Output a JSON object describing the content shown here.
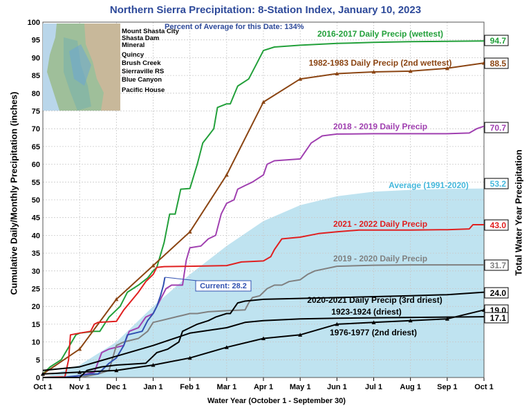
{
  "title": "Northern Sierra Precipitation: 8-Station Index, January 10, 2023",
  "percent_of_average": "Percent of Average for this Date: 134%",
  "inset_map": {
    "stations": [
      "Mount Shasta City",
      "Shasta Dam",
      "Mineral",
      "Quincy",
      "Brush Creek",
      "Sierraville RS",
      "Blue Canyon",
      "Pacific House"
    ]
  },
  "colors": {
    "y2016_2017": "#22a03a",
    "y1982_1983": "#8b4513",
    "y2018_2019": "#a040b0",
    "average": "#bfe3f0",
    "average_text": "#45b8dc",
    "y2021_2022": "#e02020",
    "y2019_2020": "#808080",
    "current": "#3050b0",
    "black": "#000000"
  },
  "chart_data": {
    "type": "line",
    "title": "Northern Sierra Precipitation: 8-Station Index, January 10, 2023",
    "xlabel": "Water Year (October 1 - September 30)",
    "ylabel": "Cumulative Daily/Monthly Precipitation (inches)",
    "ylabel_right": "Total Water Year Precipitation",
    "x_ticks": [
      "Oct 1",
      "Nov 1",
      "Dec 1",
      "Jan 1",
      "Feb 1",
      "Mar 1",
      "Apr 1",
      "May 1",
      "Jun 1",
      "Jul 1",
      "Aug 1",
      "Sep 1",
      "Oct 1"
    ],
    "y_ticks": [
      "0",
      "5",
      "10",
      "15",
      "20",
      "25",
      "30",
      "35",
      "40",
      "45",
      "50",
      "55",
      "60",
      "65",
      "70",
      "75",
      "80",
      "85",
      "90",
      "95",
      "100"
    ],
    "xlim_months": [
      0,
      12
    ],
    "ylim": [
      0,
      100
    ],
    "grid": true,
    "series": [
      {
        "name": "2016-2017 Daily Precip (wettest)",
        "color_key": "y2016_2017",
        "total": "94.7",
        "points": [
          [
            0,
            1
          ],
          [
            0.2,
            3
          ],
          [
            0.5,
            5
          ],
          [
            0.9,
            12
          ],
          [
            1.0,
            12.5
          ],
          [
            1.4,
            13
          ],
          [
            1.55,
            13
          ],
          [
            1.8,
            17
          ],
          [
            2.1,
            20
          ],
          [
            2.3,
            24
          ],
          [
            2.6,
            26
          ],
          [
            2.85,
            28
          ],
          [
            3.0,
            30
          ],
          [
            3.1,
            31
          ],
          [
            3.3,
            38
          ],
          [
            3.45,
            46
          ],
          [
            3.6,
            46
          ],
          [
            3.75,
            53
          ],
          [
            4.0,
            53.2
          ],
          [
            4.2,
            60
          ],
          [
            4.35,
            66
          ],
          [
            4.5,
            68
          ],
          [
            4.65,
            70
          ],
          [
            4.75,
            76
          ],
          [
            5.0,
            77
          ],
          [
            5.1,
            77
          ],
          [
            5.3,
            82
          ],
          [
            5.6,
            84
          ],
          [
            5.8,
            88
          ],
          [
            6.0,
            92
          ],
          [
            6.3,
            93
          ],
          [
            7.0,
            93.5
          ],
          [
            8.0,
            94
          ],
          [
            9.0,
            94.3
          ],
          [
            10.0,
            94.5
          ],
          [
            11.0,
            94.6
          ],
          [
            12.0,
            94.7
          ]
        ]
      },
      {
        "name": "1982-1983 Daily Precip (2nd wettest)",
        "color_key": "y1982_1983",
        "total": "88.5",
        "points": [
          [
            0,
            1
          ],
          [
            1,
            8
          ],
          [
            2,
            22
          ],
          [
            3,
            31.5
          ],
          [
            4,
            41
          ],
          [
            5,
            57
          ],
          [
            6,
            77.5
          ],
          [
            7,
            84
          ],
          [
            8,
            85.5
          ],
          [
            9,
            86
          ],
          [
            10,
            86.2
          ],
          [
            11,
            87
          ],
          [
            12,
            88.5
          ]
        ]
      },
      {
        "name": "2018 - 2019 Daily Precip",
        "color_key": "y2018_2019",
        "total": "70.7",
        "points": [
          [
            0,
            0
          ],
          [
            0.6,
            0
          ],
          [
            1.0,
            0.5
          ],
          [
            1.4,
            1.5
          ],
          [
            1.6,
            7
          ],
          [
            1.8,
            8
          ],
          [
            2.2,
            9
          ],
          [
            2.35,
            13
          ],
          [
            2.6,
            14
          ],
          [
            2.8,
            17
          ],
          [
            3.0,
            18
          ],
          [
            3.2,
            22
          ],
          [
            3.35,
            25
          ],
          [
            3.5,
            26
          ],
          [
            3.8,
            26
          ],
          [
            3.9,
            33
          ],
          [
            4.0,
            36.5
          ],
          [
            4.3,
            37
          ],
          [
            4.5,
            39
          ],
          [
            4.7,
            40
          ],
          [
            4.85,
            46
          ],
          [
            5.0,
            49
          ],
          [
            5.2,
            50
          ],
          [
            5.3,
            53
          ],
          [
            5.5,
            54
          ],
          [
            5.7,
            55
          ],
          [
            6.0,
            57
          ],
          [
            6.1,
            60
          ],
          [
            6.3,
            61
          ],
          [
            7.0,
            61.5
          ],
          [
            7.3,
            66
          ],
          [
            7.6,
            68
          ],
          [
            8.0,
            68.5
          ],
          [
            9.0,
            68.6
          ],
          [
            10.0,
            68.6
          ],
          [
            11.0,
            68.6
          ],
          [
            11.6,
            68.8
          ],
          [
            11.8,
            70
          ],
          [
            12.0,
            70.7
          ]
        ]
      },
      {
        "name": "2021 - 2022 Daily Precip",
        "color_key": "y2021_2022",
        "total": "43.0",
        "points": [
          [
            0,
            0
          ],
          [
            0.6,
            0.2
          ],
          [
            0.7,
            5
          ],
          [
            0.75,
            12
          ],
          [
            1.0,
            12.5
          ],
          [
            1.3,
            13
          ],
          [
            1.4,
            15
          ],
          [
            1.5,
            15.5
          ],
          [
            2.0,
            15.8
          ],
          [
            2.2,
            19
          ],
          [
            2.4,
            21.5
          ],
          [
            2.6,
            24
          ],
          [
            2.8,
            27
          ],
          [
            3.0,
            29
          ],
          [
            3.1,
            31
          ],
          [
            3.3,
            31.2
          ],
          [
            4.0,
            31.3
          ],
          [
            5.0,
            31.5
          ],
          [
            5.4,
            32.5
          ],
          [
            6.0,
            32.8
          ],
          [
            6.2,
            34
          ],
          [
            6.3,
            36
          ],
          [
            6.5,
            39
          ],
          [
            7.0,
            39.5
          ],
          [
            7.5,
            40.5
          ],
          [
            8.0,
            41
          ],
          [
            8.6,
            41.5
          ],
          [
            9.0,
            41.5
          ],
          [
            10.0,
            41.5
          ],
          [
            11.0,
            41.6
          ],
          [
            11.6,
            41.8
          ],
          [
            11.7,
            43
          ],
          [
            12.0,
            43
          ]
        ]
      },
      {
        "name": "2019 - 2020 Daily Precip",
        "color_key": "y2019_2020",
        "total": "31.7",
        "points": [
          [
            0,
            0
          ],
          [
            1.0,
            0
          ],
          [
            1.5,
            1
          ],
          [
            1.8,
            2
          ],
          [
            2.0,
            9
          ],
          [
            2.2,
            10
          ],
          [
            2.6,
            11
          ],
          [
            2.85,
            13
          ],
          [
            3.0,
            15.5
          ],
          [
            3.2,
            16
          ],
          [
            3.6,
            17
          ],
          [
            3.8,
            17.5
          ],
          [
            4.0,
            18
          ],
          [
            4.2,
            18
          ],
          [
            4.5,
            18.5
          ],
          [
            5.0,
            18.8
          ],
          [
            5.5,
            19
          ],
          [
            5.6,
            21
          ],
          [
            5.7,
            22.5
          ],
          [
            5.9,
            23
          ],
          [
            6.0,
            24
          ],
          [
            6.1,
            25
          ],
          [
            6.3,
            26
          ],
          [
            6.5,
            26
          ],
          [
            6.7,
            27
          ],
          [
            7.0,
            27.5
          ],
          [
            7.2,
            29
          ],
          [
            7.4,
            30
          ],
          [
            8.0,
            31.3
          ],
          [
            9.0,
            31.6
          ],
          [
            10.0,
            31.7
          ],
          [
            11.0,
            31.7
          ],
          [
            12.0,
            31.7
          ]
        ]
      },
      {
        "name": "Current: 28.2",
        "color_key": "current",
        "total": "",
        "points": [
          [
            0,
            0
          ],
          [
            0.5,
            0
          ],
          [
            1.0,
            0.5
          ],
          [
            1.3,
            1
          ],
          [
            1.5,
            1
          ],
          [
            1.8,
            4
          ],
          [
            2.0,
            5.5
          ],
          [
            2.2,
            9
          ],
          [
            2.3,
            12
          ],
          [
            2.5,
            12.5
          ],
          [
            2.7,
            13
          ],
          [
            2.85,
            16
          ],
          [
            3.0,
            18
          ],
          [
            3.1,
            20
          ],
          [
            3.2,
            23
          ],
          [
            3.28,
            26
          ],
          [
            3.32,
            28.2
          ]
        ]
      },
      {
        "name": "2020-2021 Daily Precip (3rd driest)",
        "color_key": "black",
        "total": "24.0",
        "points": [
          [
            0,
            0
          ],
          [
            1.0,
            0
          ],
          [
            1.2,
            2
          ],
          [
            1.6,
            3
          ],
          [
            2.0,
            3.5
          ],
          [
            2.8,
            4
          ],
          [
            3.0,
            6
          ],
          [
            3.1,
            7
          ],
          [
            3.4,
            8
          ],
          [
            3.7,
            10
          ],
          [
            3.8,
            13
          ],
          [
            4.0,
            14
          ],
          [
            4.2,
            15
          ],
          [
            4.5,
            16
          ],
          [
            4.7,
            17
          ],
          [
            5.0,
            18
          ],
          [
            5.1,
            18
          ],
          [
            5.3,
            21
          ],
          [
            5.5,
            21.5
          ],
          [
            6.0,
            22
          ],
          [
            8.0,
            22.5
          ],
          [
            10.0,
            23
          ],
          [
            11.0,
            23.3
          ],
          [
            12.0,
            24
          ]
        ]
      },
      {
        "name": "1923-1924 (driest)",
        "color_key": "black",
        "total": "17.1",
        "points": [
          [
            0,
            2
          ],
          [
            1,
            3
          ],
          [
            2,
            6
          ],
          [
            3,
            9
          ],
          [
            4,
            12.5
          ],
          [
            5,
            14
          ],
          [
            5.5,
            15.5
          ],
          [
            6,
            16
          ],
          [
            7,
            16.5
          ],
          [
            8,
            16.7
          ],
          [
            9,
            16.8
          ],
          [
            10,
            16.9
          ],
          [
            11,
            17
          ],
          [
            12,
            17.1
          ]
        ]
      },
      {
        "name": "1976-1977 (2nd driest)",
        "color_key": "black",
        "total": "19.0",
        "points": [
          [
            0,
            1
          ],
          [
            1,
            1.5
          ],
          [
            2,
            2
          ],
          [
            3,
            3.5
          ],
          [
            4,
            5.5
          ],
          [
            5,
            8.5
          ],
          [
            6,
            11
          ],
          [
            7,
            12
          ],
          [
            8,
            15
          ],
          [
            9,
            15.5
          ],
          [
            10,
            16
          ],
          [
            11,
            16.5
          ],
          [
            12,
            19
          ]
        ]
      }
    ],
    "average": {
      "name": "Average (1991-2020)",
      "color_key": "average",
      "total": "53.2",
      "points": [
        [
          0,
          0
        ],
        [
          1,
          3.5
        ],
        [
          2,
          10
        ],
        [
          3,
          20
        ],
        [
          4,
          29
        ],
        [
          5,
          37
        ],
        [
          6,
          44
        ],
        [
          7,
          48.5
        ],
        [
          8,
          51
        ],
        [
          9,
          52.3
        ],
        [
          10,
          52.8
        ],
        [
          11,
          53.1
        ],
        [
          12,
          53.2
        ]
      ]
    },
    "series_labels": [
      {
        "text": "2016-2017 Daily Precip (wettest)",
        "color_key": "y2016_2017"
      },
      {
        "text": "1982-1983 Daily Precip (2nd wettest)",
        "color_key": "y1982_1983"
      },
      {
        "text": "2018 - 2019 Daily Precip",
        "color_key": "y2018_2019"
      },
      {
        "text": "Average (1991-2020)",
        "color_key": "average_text"
      },
      {
        "text": "2021 - 2022 Daily Precip",
        "color_key": "y2021_2022"
      },
      {
        "text": "2019 - 2020 Daily Precip",
        "color_key": "y2019_2020"
      },
      {
        "text": "2020-2021 Daily Precip (3rd driest)",
        "color_key": "black"
      },
      {
        "text": "1923-1924 (driest)",
        "color_key": "black"
      },
      {
        "text": "1976-1977 (2nd driest)",
        "color_key": "black"
      }
    ],
    "current_label": "Current: 28.2",
    "totals": [
      {
        "value": "94.7",
        "color_key": "y2016_2017"
      },
      {
        "value": "88.5",
        "color_key": "y1982_1983"
      },
      {
        "value": "70.7",
        "color_key": "y2018_2019"
      },
      {
        "value": "53.2",
        "color_key": "average_text"
      },
      {
        "value": "43.0",
        "color_key": "y2021_2022"
      },
      {
        "value": "31.7",
        "color_key": "y2019_2020"
      },
      {
        "value": "24.0",
        "color_key": "black"
      },
      {
        "value": "19.0",
        "color_key": "black"
      },
      {
        "value": "17.1",
        "color_key": "black"
      }
    ]
  }
}
